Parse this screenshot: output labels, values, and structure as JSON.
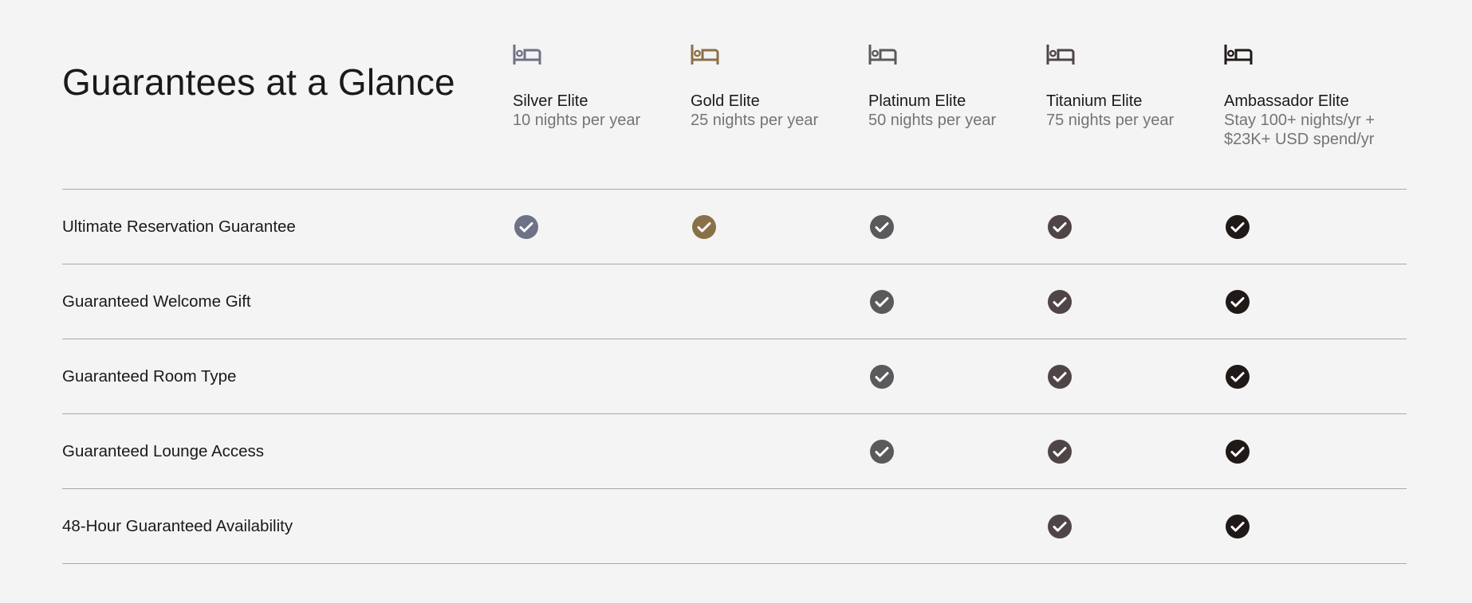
{
  "title": "Guarantees at a Glance",
  "tiers": [
    {
      "name": "Silver Elite",
      "requirement": "10 nights per year",
      "color": "#6e7287",
      "icon": "bed-icon"
    },
    {
      "name": "Gold Elite",
      "requirement": "25 nights per year",
      "color": "#8a7048",
      "icon": "bed-icon"
    },
    {
      "name": "Platinum Elite",
      "requirement": "50 nights per year",
      "color": "#5a5a5c",
      "icon": "bed-icon"
    },
    {
      "name": "Titanium Elite",
      "requirement": "75 nights per year",
      "color": "#4f4547",
      "icon": "bed-icon"
    },
    {
      "name": "Ambassador Elite",
      "requirement": "Stay 100+ nights/yr + $23K+ USD spend/yr",
      "color": "#1f1a17",
      "icon": "bed-icon"
    }
  ],
  "rows": [
    {
      "label": "Ultimate Reservation Guarantee",
      "included": [
        true,
        true,
        true,
        true,
        true
      ]
    },
    {
      "label": "Guaranteed Welcome Gift",
      "included": [
        false,
        false,
        true,
        true,
        true
      ]
    },
    {
      "label": "Guaranteed Room Type",
      "included": [
        false,
        false,
        true,
        true,
        true
      ]
    },
    {
      "label": "Guaranteed Lounge Access",
      "included": [
        false,
        false,
        true,
        true,
        true
      ]
    },
    {
      "label": "48-Hour Guaranteed Availability",
      "included": [
        false,
        false,
        false,
        true,
        true
      ]
    }
  ]
}
